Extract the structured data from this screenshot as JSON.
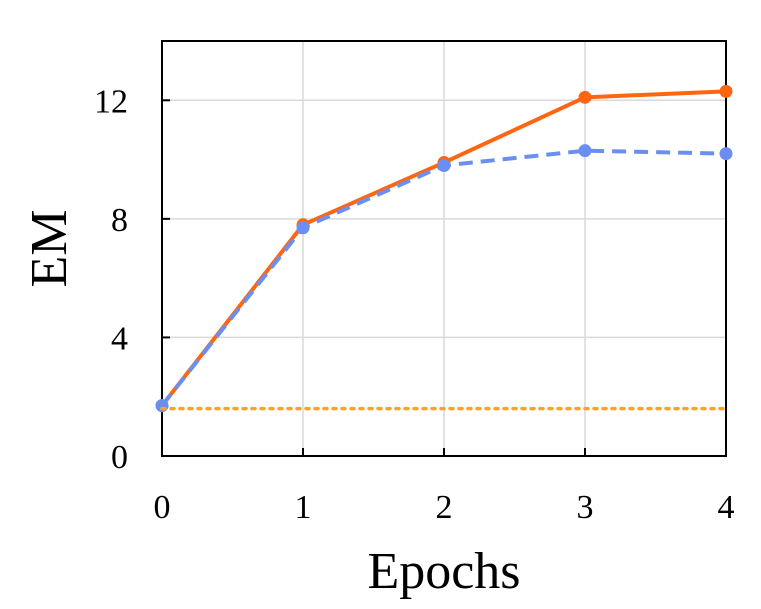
{
  "chart_data": {
    "type": "line",
    "title": "",
    "xlabel": "Epochs",
    "ylabel": "EM",
    "x": [
      0,
      1,
      2,
      3,
      4
    ],
    "xlim": [
      0,
      4
    ],
    "ylim": [
      0,
      14
    ],
    "xticks": [
      "0",
      "1",
      "2",
      "3",
      "4"
    ],
    "yticks": [
      "0",
      "4",
      "8",
      "12"
    ],
    "ytick_values": [
      0,
      4,
      8,
      12
    ],
    "grid": true,
    "legend": "none",
    "series": [
      {
        "values": [
          1.7,
          7.8,
          9.9,
          12.1,
          12.3
        ],
        "color": "#ff6611",
        "style": "solid",
        "markers": true
      },
      {
        "values": [
          1.7,
          7.7,
          9.8,
          10.3,
          10.2
        ],
        "color": "#6b8ff0",
        "style": "dashed",
        "markers": true
      },
      {
        "values": [
          1.6,
          1.6,
          1.6,
          1.6,
          1.6
        ],
        "color": "#f5a623",
        "style": "dotted",
        "markers": false
      }
    ]
  }
}
